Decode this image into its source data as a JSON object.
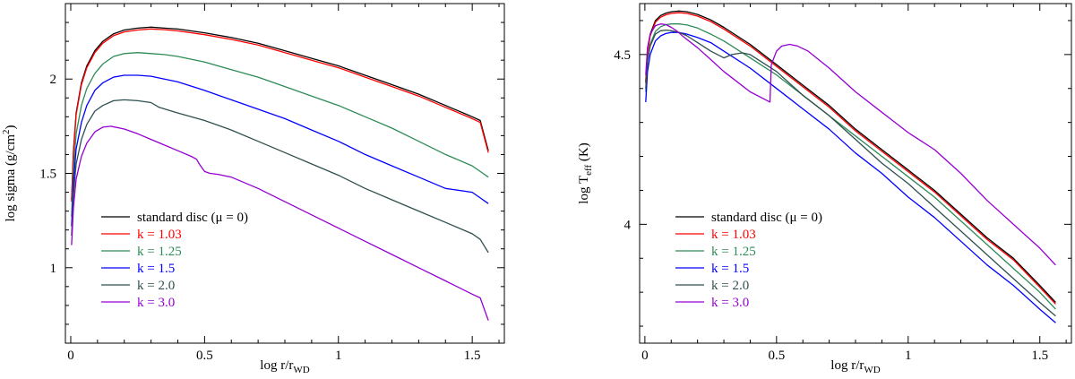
{
  "chart_data": [
    {
      "type": "line",
      "title": "",
      "xlabel": {
        "main": "log r/r",
        "sub": "WD"
      },
      "ylabel": {
        "main": "log sigma (g/cm",
        "sup": "2",
        "tail": ")"
      },
      "xlim": [
        -0.02,
        1.62
      ],
      "ylim": [
        0.6,
        2.4
      ],
      "xticks": [
        0,
        0.5,
        1,
        1.5
      ],
      "xtick_labels": [
        "0",
        "0.5",
        "1",
        "1.5"
      ],
      "yticks": [
        1,
        1.5,
        2
      ],
      "ytick_labels": [
        "1",
        "1.5",
        "2"
      ],
      "legend_position": "lower-left",
      "series": [
        {
          "name": "standard disc (μ = 0)",
          "color": "#000000",
          "x": [
            0.003,
            0.01,
            0.02,
            0.04,
            0.06,
            0.09,
            0.12,
            0.16,
            0.2,
            0.25,
            0.3,
            0.35,
            0.4,
            0.5,
            0.6,
            0.7,
            0.8,
            0.9,
            1.0,
            1.1,
            1.2,
            1.3,
            1.4,
            1.5,
            1.53,
            1.56
          ],
          "y": [
            1.36,
            1.62,
            1.82,
            1.98,
            2.07,
            2.15,
            2.2,
            2.24,
            2.26,
            2.27,
            2.275,
            2.27,
            2.265,
            2.245,
            2.22,
            2.19,
            2.15,
            2.11,
            2.07,
            2.02,
            1.97,
            1.92,
            1.86,
            1.8,
            1.78,
            1.62
          ]
        },
        {
          "name": "k = 1.03",
          "color": "#ff0000",
          "x": [
            0.003,
            0.01,
            0.02,
            0.04,
            0.06,
            0.09,
            0.12,
            0.16,
            0.2,
            0.25,
            0.3,
            0.35,
            0.4,
            0.5,
            0.6,
            0.7,
            0.8,
            0.9,
            1.0,
            1.1,
            1.2,
            1.3,
            1.4,
            1.5,
            1.53,
            1.56
          ],
          "y": [
            1.35,
            1.61,
            1.81,
            1.97,
            2.06,
            2.14,
            2.19,
            2.23,
            2.25,
            2.26,
            2.265,
            2.262,
            2.255,
            2.235,
            2.21,
            2.18,
            2.14,
            2.1,
            2.06,
            2.01,
            1.96,
            1.91,
            1.85,
            1.79,
            1.77,
            1.61
          ]
        },
        {
          "name": "k = 1.25",
          "color": "#2e8b57",
          "x": [
            0.003,
            0.01,
            0.02,
            0.04,
            0.06,
            0.09,
            0.12,
            0.16,
            0.2,
            0.25,
            0.3,
            0.35,
            0.4,
            0.5,
            0.6,
            0.7,
            0.8,
            0.9,
            1.0,
            1.1,
            1.2,
            1.3,
            1.4,
            1.5,
            1.53,
            1.56
          ],
          "y": [
            1.27,
            1.52,
            1.71,
            1.86,
            1.95,
            2.03,
            2.08,
            2.12,
            2.135,
            2.14,
            2.135,
            2.13,
            2.12,
            2.09,
            2.05,
            2.01,
            1.96,
            1.91,
            1.86,
            1.8,
            1.74,
            1.67,
            1.6,
            1.54,
            1.51,
            1.48
          ]
        },
        {
          "name": "k = 1.5",
          "color": "#0000ff",
          "x": [
            0.003,
            0.01,
            0.02,
            0.04,
            0.06,
            0.09,
            0.12,
            0.16,
            0.2,
            0.25,
            0.3,
            0.35,
            0.4,
            0.5,
            0.6,
            0.7,
            0.8,
            0.9,
            1.0,
            1.1,
            1.2,
            1.3,
            1.4,
            1.5,
            1.53,
            1.56
          ],
          "y": [
            1.22,
            1.45,
            1.63,
            1.77,
            1.86,
            1.94,
            1.98,
            2.01,
            2.02,
            2.02,
            2.015,
            2.0,
            1.985,
            1.94,
            1.89,
            1.84,
            1.79,
            1.73,
            1.67,
            1.6,
            1.54,
            1.48,
            1.42,
            1.4,
            1.37,
            1.34
          ]
        },
        {
          "name": "k = 2.0",
          "color": "#2f4f4f",
          "x": [
            0.003,
            0.01,
            0.02,
            0.04,
            0.06,
            0.09,
            0.12,
            0.16,
            0.2,
            0.25,
            0.3,
            0.33,
            0.4,
            0.5,
            0.6,
            0.7,
            0.8,
            0.9,
            1.0,
            1.1,
            1.2,
            1.3,
            1.4,
            1.5,
            1.53,
            1.56
          ],
          "y": [
            1.17,
            1.39,
            1.55,
            1.68,
            1.76,
            1.83,
            1.86,
            1.885,
            1.89,
            1.885,
            1.875,
            1.85,
            1.82,
            1.78,
            1.73,
            1.67,
            1.61,
            1.55,
            1.49,
            1.42,
            1.36,
            1.3,
            1.24,
            1.18,
            1.15,
            1.08
          ]
        },
        {
          "name": "k = 3.0",
          "color": "#9400d3",
          "x": [
            0.003,
            0.01,
            0.02,
            0.04,
            0.06,
            0.09,
            0.12,
            0.15,
            0.2,
            0.25,
            0.3,
            0.35,
            0.4,
            0.45,
            0.47,
            0.48,
            0.5,
            0.52,
            0.55,
            0.6,
            0.7,
            0.8,
            0.9,
            1.0,
            1.1,
            1.2,
            1.3,
            1.4,
            1.5,
            1.53,
            1.56
          ],
          "y": [
            1.12,
            1.32,
            1.47,
            1.59,
            1.66,
            1.72,
            1.745,
            1.75,
            1.735,
            1.71,
            1.68,
            1.65,
            1.62,
            1.59,
            1.575,
            1.55,
            1.51,
            1.5,
            1.495,
            1.48,
            1.42,
            1.35,
            1.28,
            1.21,
            1.14,
            1.07,
            1.0,
            0.93,
            0.86,
            0.84,
            0.72
          ]
        }
      ]
    },
    {
      "type": "line",
      "title": "",
      "xlabel": {
        "main": "log r/r",
        "sub": "WD"
      },
      "ylabel": {
        "main": "log T",
        "sub": "eff",
        "tail": " (K)"
      },
      "xlim": [
        -0.02,
        1.62
      ],
      "ylim": [
        3.65,
        4.65
      ],
      "xticks": [
        0,
        0.5,
        1,
        1.5
      ],
      "xtick_labels": [
        "0",
        "0.5",
        "1",
        "1.5"
      ],
      "yticks": [
        4,
        4.5
      ],
      "ytick_labels": [
        "4",
        "4.5"
      ],
      "legend_position": "lower-left",
      "series": [
        {
          "name": "standard disc (μ = 0)",
          "color": "#000000",
          "x": [
            0.003,
            0.01,
            0.02,
            0.04,
            0.06,
            0.08,
            0.1,
            0.13,
            0.16,
            0.2,
            0.25,
            0.3,
            0.4,
            0.5,
            0.6,
            0.7,
            0.8,
            0.9,
            1.0,
            1.1,
            1.2,
            1.3,
            1.4,
            1.5,
            1.56
          ],
          "y": [
            4.42,
            4.51,
            4.56,
            4.6,
            4.615,
            4.622,
            4.626,
            4.628,
            4.626,
            4.618,
            4.602,
            4.58,
            4.53,
            4.47,
            4.41,
            4.35,
            4.28,
            4.22,
            4.16,
            4.1,
            4.03,
            3.96,
            3.9,
            3.82,
            3.77
          ]
        },
        {
          "name": "k = 1.03",
          "color": "#ff0000",
          "x": [
            0.003,
            0.01,
            0.02,
            0.04,
            0.06,
            0.08,
            0.1,
            0.13,
            0.16,
            0.2,
            0.25,
            0.3,
            0.4,
            0.5,
            0.6,
            0.7,
            0.8,
            0.9,
            1.0,
            1.1,
            1.2,
            1.3,
            1.4,
            1.5,
            1.56
          ],
          "y": [
            4.415,
            4.505,
            4.555,
            4.595,
            4.61,
            4.617,
            4.621,
            4.623,
            4.621,
            4.613,
            4.597,
            4.575,
            4.525,
            4.465,
            4.405,
            4.345,
            4.275,
            4.215,
            4.155,
            4.095,
            4.025,
            3.955,
            3.895,
            3.815,
            3.765
          ]
        },
        {
          "name": "k = 1.25",
          "color": "#2e8b57",
          "x": [
            0.003,
            0.01,
            0.02,
            0.04,
            0.06,
            0.08,
            0.1,
            0.13,
            0.16,
            0.2,
            0.25,
            0.3,
            0.4,
            0.5,
            0.6,
            0.7,
            0.8,
            0.9,
            1.0,
            1.1,
            1.2,
            1.3,
            1.4,
            1.5,
            1.56
          ],
          "y": [
            4.39,
            4.48,
            4.53,
            4.568,
            4.582,
            4.588,
            4.59,
            4.59,
            4.587,
            4.578,
            4.56,
            4.54,
            4.49,
            4.44,
            4.38,
            4.32,
            4.26,
            4.2,
            4.14,
            4.08,
            4.01,
            3.94,
            3.87,
            3.8,
            3.75
          ]
        },
        {
          "name": "k = 1.5",
          "color": "#0000ff",
          "x": [
            0.003,
            0.01,
            0.02,
            0.04,
            0.06,
            0.08,
            0.1,
            0.13,
            0.16,
            0.2,
            0.25,
            0.3,
            0.4,
            0.5,
            0.6,
            0.7,
            0.8,
            0.9,
            1.0,
            1.1,
            1.2,
            1.3,
            1.4,
            1.5,
            1.56
          ],
          "y": [
            4.36,
            4.45,
            4.5,
            4.54,
            4.555,
            4.562,
            4.565,
            4.565,
            4.56,
            4.55,
            4.535,
            4.51,
            4.46,
            4.4,
            4.34,
            4.28,
            4.21,
            4.15,
            4.08,
            4.02,
            3.95,
            3.88,
            3.82,
            3.75,
            3.71
          ]
        },
        {
          "name": "k = 2.0",
          "color": "#2f4f4f",
          "x": [
            0.003,
            0.01,
            0.02,
            0.04,
            0.06,
            0.08,
            0.1,
            0.13,
            0.16,
            0.2,
            0.25,
            0.3,
            0.33,
            0.37,
            0.4,
            0.5,
            0.6,
            0.7,
            0.8,
            0.9,
            1.0,
            1.1,
            1.2,
            1.3,
            1.4,
            1.5,
            1.56
          ],
          "y": [
            4.4,
            4.48,
            4.525,
            4.56,
            4.57,
            4.572,
            4.57,
            4.565,
            4.555,
            4.535,
            4.51,
            4.49,
            4.5,
            4.505,
            4.5,
            4.45,
            4.38,
            4.32,
            4.25,
            4.18,
            4.12,
            4.05,
            3.98,
            3.91,
            3.84,
            3.77,
            3.73
          ]
        },
        {
          "name": "k = 3.0",
          "color": "#9400d3",
          "x": [
            0.003,
            0.01,
            0.02,
            0.04,
            0.06,
            0.08,
            0.1,
            0.12,
            0.15,
            0.2,
            0.25,
            0.3,
            0.35,
            0.4,
            0.45,
            0.475,
            0.48,
            0.5,
            0.52,
            0.55,
            0.58,
            0.62,
            0.7,
            0.8,
            0.9,
            1.0,
            1.1,
            1.2,
            1.3,
            1.4,
            1.5,
            1.56
          ],
          "y": [
            4.44,
            4.52,
            4.56,
            4.585,
            4.59,
            4.588,
            4.58,
            4.57,
            4.55,
            4.52,
            4.485,
            4.45,
            4.42,
            4.39,
            4.37,
            4.36,
            4.47,
            4.51,
            4.525,
            4.53,
            4.525,
            4.51,
            4.46,
            4.39,
            4.33,
            4.27,
            4.22,
            4.15,
            4.07,
            4.0,
            3.93,
            3.88
          ]
        }
      ]
    }
  ]
}
